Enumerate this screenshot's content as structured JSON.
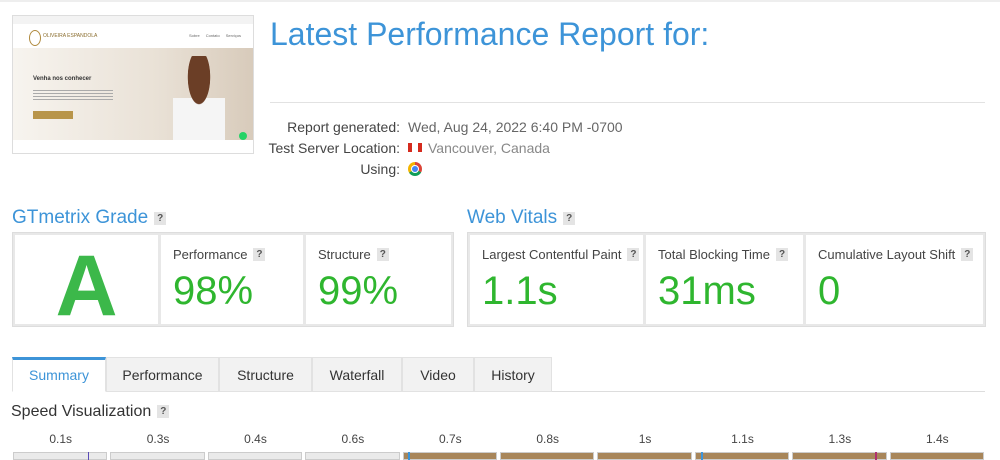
{
  "thumbnail": {
    "brand": "OLIVEIRA ESPANDOLA",
    "nav": [
      "Sobre",
      "Contato",
      "Serviços"
    ],
    "headline": "Venha nos conhecer"
  },
  "header": {
    "title": "Latest Performance Report for:"
  },
  "report": {
    "rows": [
      {
        "label": "Report generated:",
        "value": "Wed, Aug 24, 2022 6:40 PM -0700"
      },
      {
        "label": "Test Server Location:",
        "value": "Vancouver, Canada"
      },
      {
        "label": "Using:"
      }
    ]
  },
  "help_icon": "?",
  "grade": {
    "title": "GTmetrix Grade",
    "letter": "A",
    "metrics": [
      {
        "label": "Performance",
        "value": "98%"
      },
      {
        "label": "Structure",
        "value": "99%"
      }
    ]
  },
  "vitals": {
    "title": "Web Vitals",
    "metrics": [
      {
        "label": "Largest Contentful Paint",
        "value": "1.1s"
      },
      {
        "label": "Total Blocking Time",
        "value": "31ms"
      },
      {
        "label": "Cumulative Layout Shift",
        "value": "0"
      }
    ]
  },
  "tabs": [
    "Summary",
    "Performance",
    "Structure",
    "Waterfall",
    "Video",
    "History"
  ],
  "speed": {
    "title": "Speed Visualization",
    "times": [
      "0.1s",
      "0.3s",
      "0.4s",
      "0.6s",
      "0.7s",
      "0.8s",
      "1s",
      "1.1s",
      "1.3s",
      "1.4s"
    ]
  }
}
